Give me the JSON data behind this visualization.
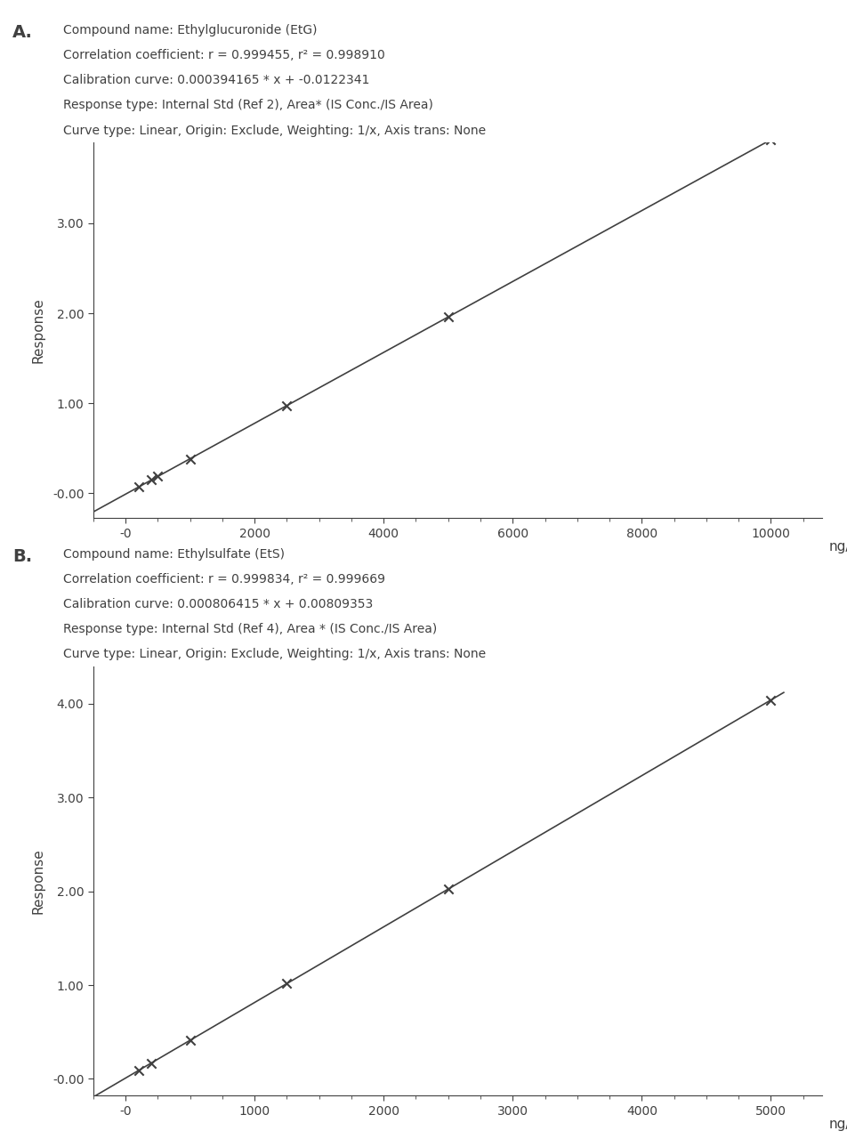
{
  "panel_A": {
    "label": "A.",
    "info_lines": [
      "Compound name: Ethylglucuronide (EtG)",
      "Correlation coefficient: r = 0.999455, r² = 0.998910",
      "Calibration curve: 0.000394165 * x + -0.0122341",
      "Response type: Internal Std (Ref 2), Area* (IS Conc./IS Area)",
      "Curve type: Linear, Origin: Exclude, Weighting: 1/x, Axis trans: None"
    ],
    "slope": 0.000394165,
    "intercept": -0.0122341,
    "data_x": [
      200,
      400,
      500,
      1000,
      2500,
      5000,
      10000
    ],
    "xlim": [
      -500,
      10800
    ],
    "ylim": [
      -0.28,
      3.9
    ],
    "xticks": [
      0,
      2000,
      4000,
      6000,
      8000,
      10000
    ],
    "yticks": [
      0.0,
      1.0,
      2.0,
      3.0
    ],
    "ytick_labels": [
      "-0.00",
      "1.00",
      "2.00",
      "3.00"
    ],
    "xlabel": "ng/mL",
    "ylabel": "Response",
    "line_x_start": -500,
    "line_x_end": 10200
  },
  "panel_B": {
    "label": "B.",
    "info_lines": [
      "Compound name: Ethylsulfate (EtS)",
      "Correlation coefficient: r = 0.999834, r² = 0.999669",
      "Calibration curve: 0.000806415 * x + 0.00809353",
      "Response type: Internal Std (Ref 4), Area * (IS Conc./IS Area)",
      "Curve type: Linear, Origin: Exclude, Weighting: 1/x, Axis trans: None"
    ],
    "slope": 0.000806415,
    "intercept": 0.00809353,
    "data_x": [
      100,
      200,
      500,
      1250,
      2500,
      5000
    ],
    "xlim": [
      -250,
      5400
    ],
    "ylim": [
      -0.18,
      4.4
    ],
    "xticks": [
      0,
      1000,
      2000,
      3000,
      4000,
      5000
    ],
    "yticks": [
      0.0,
      1.0,
      2.0,
      3.0,
      4.0
    ],
    "ytick_labels": [
      "-0.00",
      "1.00",
      "2.00",
      "3.00",
      "4.00"
    ],
    "xlabel": "ng/mL",
    "ylabel": "Response",
    "line_x_start": -250,
    "line_x_end": 5100
  },
  "font_color": "#404040",
  "line_color": "#404040",
  "marker_color": "#404040",
  "bg_color": "#ffffff",
  "label_fontsize": 14,
  "info_fontsize": 10,
  "axis_label_fontsize": 11,
  "tick_fontsize": 10
}
